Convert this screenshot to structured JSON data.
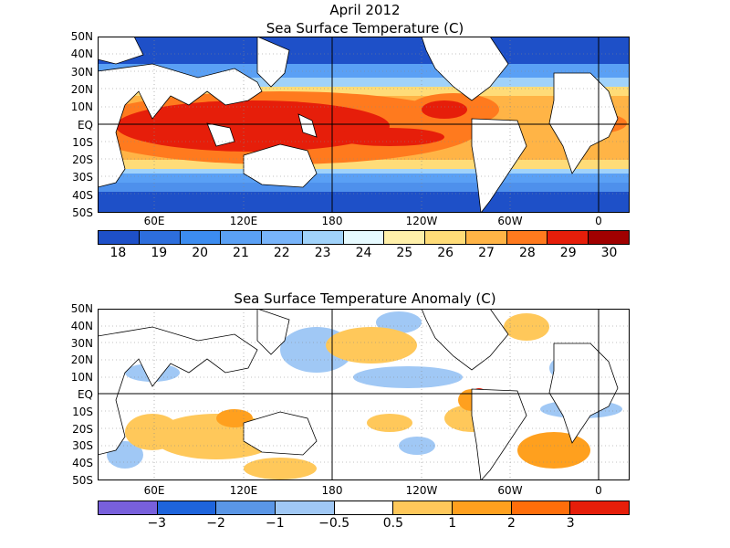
{
  "header": {
    "date": "April 2012"
  },
  "map1": {
    "title": "Sea Surface Temperature (C)",
    "colors": [
      "#1e50c8",
      "#2d6edc",
      "#3c8cf0",
      "#5aa0f5",
      "#78b4fa",
      "#a0d2fa",
      "#e6faff",
      "#fff0aa",
      "#ffdc78",
      "#ffb446",
      "#ff7a1e",
      "#e61e0a",
      "#a00000"
    ],
    "labels": [
      "18",
      "19",
      "20",
      "21",
      "22",
      "23",
      "24",
      "25",
      "26",
      "27",
      "28",
      "29",
      "30"
    ]
  },
  "map2": {
    "title": "Sea Surface Temperature Anomaly (C)",
    "colors": [
      "#7860dc",
      "#1e64dc",
      "#5a96e6",
      "#a0c8f5",
      "#ffffff",
      "#ffc85a",
      "#ffa01e",
      "#ff6e0a",
      "#e61e0a"
    ],
    "labels": [
      "−3",
      "−2",
      "−1",
      "−0.5",
      "0.5",
      "1",
      "2",
      "3"
    ]
  },
  "latitudes": [
    "50N",
    "40N",
    "30N",
    "20N",
    "10N",
    "EQ",
    "10S",
    "20S",
    "30S",
    "40S",
    "50S"
  ],
  "longitudes": [
    "60E",
    "120E",
    "180",
    "120W",
    "60W",
    "0"
  ]
}
